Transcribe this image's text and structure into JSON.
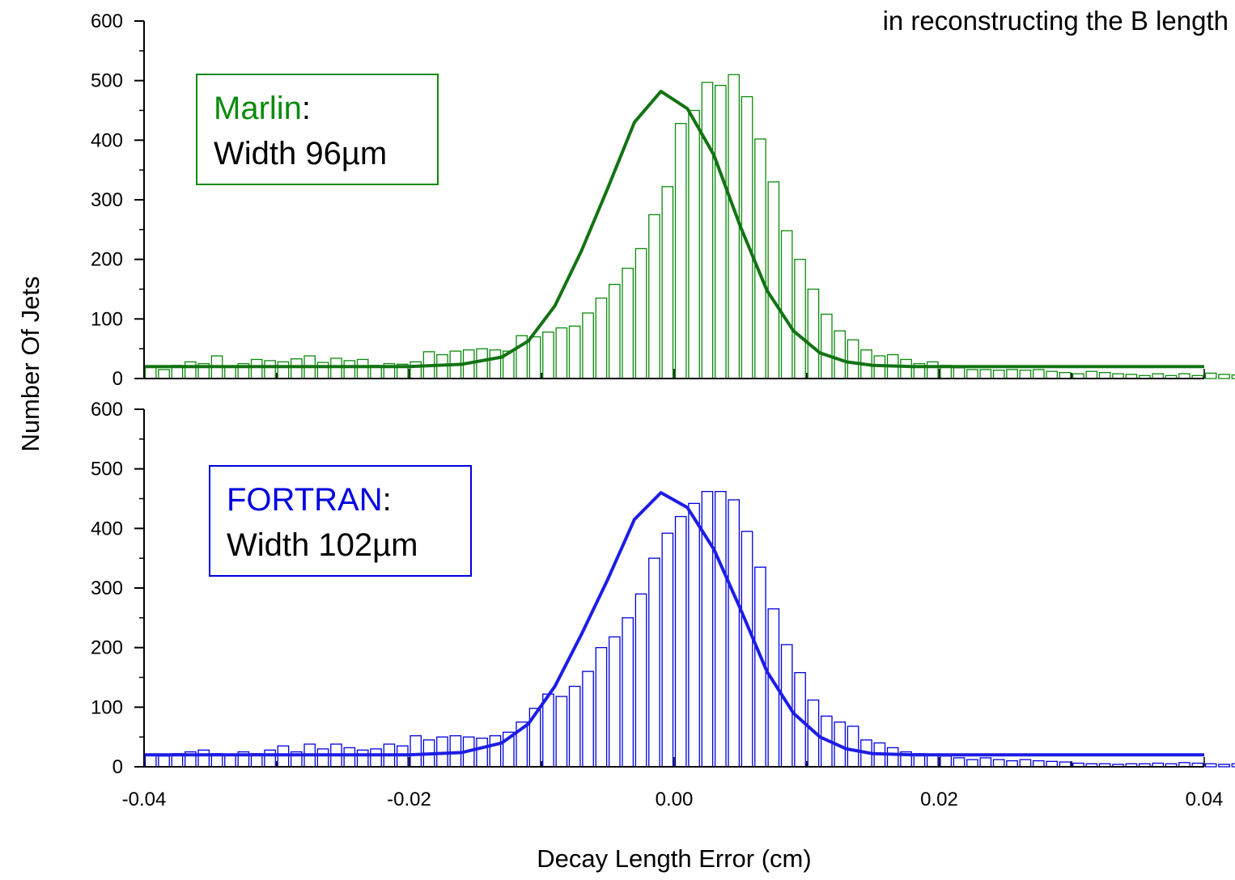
{
  "header_note": "in reconstructing the B length",
  "colors": {
    "marlin": "#0b8a0b",
    "fortran": "#0000e0",
    "marlin_fit": "#137313",
    "fortran_fit": "#1d1de6"
  },
  "chart_data": [
    {
      "type": "bar",
      "panel": "top",
      "xlabel": "Decay Length Error (cm)",
      "ylabel": "Number Of Jets",
      "xlim": [
        -0.04,
        0.04
      ],
      "ylim": [
        0,
        600
      ],
      "yticks": [
        "0",
        "100",
        "200",
        "300",
        "400",
        "500",
        "600"
      ],
      "xticks": [],
      "legend": {
        "name": "Marlin",
        "sep": ":",
        "width_text": "Width 96µm",
        "placement": "top-left"
      },
      "bin_width": 0.001,
      "bin_start": -0.04,
      "histogram": [
        20,
        15,
        22,
        28,
        25,
        38,
        20,
        25,
        32,
        30,
        28,
        33,
        38,
        27,
        34,
        30,
        32,
        22,
        25,
        24,
        28,
        45,
        40,
        46,
        48,
        50,
        48,
        46,
        72,
        70,
        78,
        85,
        88,
        110,
        135,
        158,
        185,
        218,
        275,
        322,
        428,
        450,
        497,
        492,
        510,
        473,
        402,
        330,
        248,
        200,
        150,
        108,
        80,
        65,
        48,
        38,
        40,
        32,
        25,
        28,
        22,
        18,
        15,
        15,
        14,
        15,
        14,
        15,
        12,
        10,
        8,
        12,
        10,
        8,
        7,
        5,
        8,
        5,
        8,
        5,
        9,
        7,
        6,
        5,
        5
      ],
      "fit": {
        "name": "Marlin",
        "x": [
          -0.04,
          -0.03,
          -0.02,
          -0.016,
          -0.013,
          -0.011,
          -0.009,
          -0.007,
          -0.005,
          -0.003,
          -0.001,
          0.001,
          0.003,
          0.005,
          0.007,
          0.009,
          0.011,
          0.013,
          0.015,
          0.018,
          0.04
        ],
        "y": [
          20,
          20,
          20,
          24,
          36,
          63,
          122,
          214,
          320,
          430,
          482,
          453,
          375,
          255,
          148,
          80,
          43,
          28,
          22,
          20,
          20
        ]
      }
    },
    {
      "type": "bar",
      "panel": "bottom",
      "xlabel": "Decay Length Error (cm)",
      "ylabel": "Number Of Jets",
      "xlim": [
        -0.04,
        0.04
      ],
      "ylim": [
        0,
        600
      ],
      "yticks": [
        "0",
        "100",
        "200",
        "300",
        "400",
        "500",
        "600"
      ],
      "xticks": [
        "-0.04",
        "-0.02",
        "0.00",
        "0.02",
        "0.04"
      ],
      "legend": {
        "name": "FORTRAN",
        "sep": ":",
        "width_text": "Width 102µm",
        "placement": "top-left"
      },
      "bin_width": 0.001,
      "bin_start": -0.04,
      "histogram": [
        20,
        18,
        22,
        25,
        28,
        22,
        20,
        25,
        22,
        28,
        35,
        25,
        38,
        30,
        38,
        32,
        28,
        30,
        38,
        35,
        52,
        45,
        50,
        52,
        50,
        48,
        52,
        58,
        75,
        98,
        122,
        118,
        135,
        160,
        200,
        218,
        250,
        290,
        350,
        392,
        420,
        442,
        462,
        462,
        448,
        395,
        335,
        265,
        205,
        158,
        112,
        85,
        75,
        68,
        45,
        40,
        32,
        25,
        22,
        20,
        18,
        15,
        12,
        15,
        12,
        10,
        12,
        10,
        9,
        8,
        6,
        5,
        5,
        4,
        5,
        5,
        6,
        5,
        7,
        6,
        5,
        4,
        5,
        4,
        3
      ],
      "fit": {
        "name": "FORTRAN",
        "x": [
          -0.04,
          -0.03,
          -0.02,
          -0.016,
          -0.013,
          -0.011,
          -0.009,
          -0.007,
          -0.005,
          -0.003,
          -0.001,
          0.001,
          0.003,
          0.005,
          0.007,
          0.009,
          0.011,
          0.013,
          0.015,
          0.018,
          0.04
        ],
        "y": [
          20,
          20,
          20,
          24,
          40,
          72,
          135,
          222,
          315,
          415,
          460,
          435,
          365,
          265,
          160,
          90,
          50,
          30,
          22,
          20,
          20
        ]
      }
    }
  ]
}
